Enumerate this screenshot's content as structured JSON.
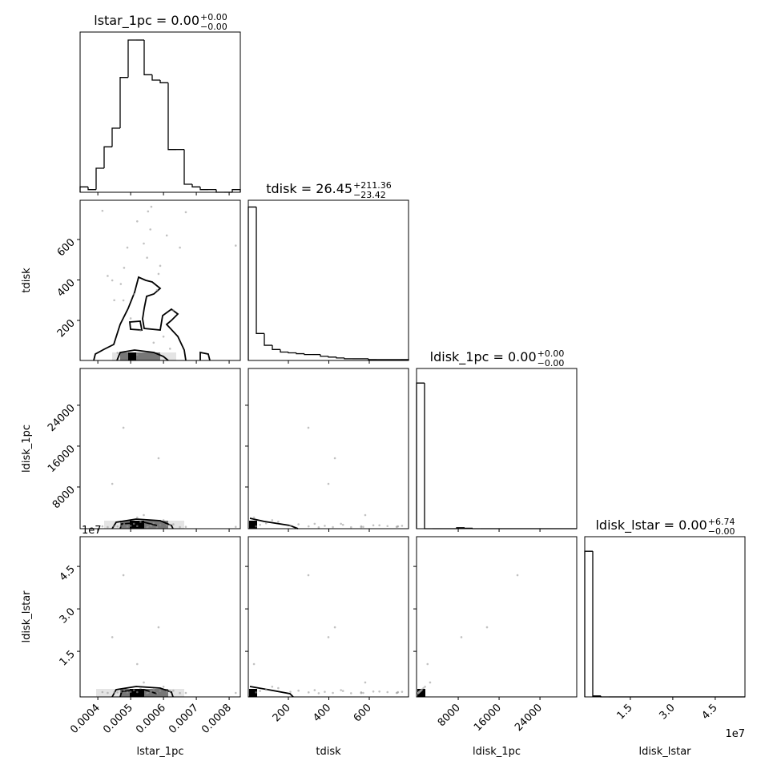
{
  "chart_data": {
    "type": "corner",
    "params": [
      {
        "name": "lstar_1pc",
        "title": "lstar_1pc = 0.00",
        "plus": "+0.00",
        "minus": "−0.00",
        "lim": [
          0.000346,
          0.000834
        ],
        "ticks": [
          0.0004,
          0.0005,
          0.0006,
          0.0007,
          0.0008
        ],
        "hist": {
          "bins": [
            0.000346,
            0.0003704,
            0.0003948,
            0.0004192,
            0.0004436,
            0.000468,
            0.0004924,
            0.0005168,
            0.0005412,
            0.0005656,
            0.00059,
            0.0006144,
            0.0006388,
            0.0006632,
            0.0006876,
            0.000712,
            0.0007364,
            0.0007608,
            0.0007852,
            0.0008096,
            0.000834
          ],
          "counts": [
            2,
            1,
            9,
            17,
            24,
            43,
            57,
            57,
            44,
            42,
            41,
            16,
            16,
            3,
            2,
            1,
            1,
            0,
            0,
            1
          ],
          "ylim": [
            0,
            60
          ]
        }
      },
      {
        "name": "tdisk",
        "title": "tdisk = 26.45",
        "plus": "+211.36",
        "minus": "−23.42",
        "lim": [
          2,
          794
        ],
        "ticks": [
          200,
          400,
          600
        ],
        "hist": {
          "bins": [
            2,
            41.6,
            81.2,
            120.8,
            160.4,
            200,
            239.6,
            279.2,
            318.8,
            358.4,
            398,
            437.6,
            477.2,
            516.8,
            556.4,
            596,
            635.6,
            675.2,
            714.8,
            754.4,
            794
          ],
          "counts": [
            182,
            32,
            18,
            13,
            10,
            9,
            8,
            7,
            7,
            5,
            4,
            3,
            2,
            2,
            2,
            1,
            1,
            1,
            1,
            1
          ],
          "ylim": [
            0,
            190
          ]
        }
      },
      {
        "name": "ldisk_1pc",
        "title": "ldisk_1pc = 0.00",
        "plus": "+0.00",
        "minus": "−0.00",
        "lim": [
          -160,
          31200
        ],
        "ticks": [
          8000,
          16000,
          24000
        ],
        "hist": {
          "bins": [
            -160,
            1408,
            2976,
            4544,
            6112,
            7680,
            9248,
            10816,
            12384,
            13952,
            15520,
            17088,
            18656,
            20224,
            21792,
            23360,
            24928,
            26496,
            28064,
            29632,
            31200
          ],
          "counts": [
            300,
            0,
            0,
            0,
            0,
            2,
            1,
            0,
            0,
            0,
            0,
            0,
            0,
            0,
            0,
            0,
            0,
            0,
            0,
            0
          ],
          "ylim": [
            0,
            330
          ]
        }
      },
      {
        "name": "ldisk_lstar",
        "title": "ldisk_lstar = 0.00",
        "plus": "+6.74",
        "minus": "−0.00",
        "lim": [
          -1100000,
          55500000
        ],
        "offset_label": "1e7",
        "ticks": [
          {
            "value": 15000000,
            "label": "1.5"
          },
          {
            "value": 30000000,
            "label": "3.0"
          },
          {
            "value": 45000000,
            "label": "4.5"
          }
        ],
        "hist": {
          "bins": [
            -1100000,
            1730000,
            4560000,
            7390000,
            10220000,
            13050000,
            15880000,
            18710000,
            21540000,
            24370000,
            27200000,
            30030000,
            32860000,
            35690000,
            38520000,
            41350000,
            44180000,
            47010000,
            49840000,
            52670000,
            55500000
          ],
          "counts": [
            300,
            2,
            0,
            0,
            0,
            0,
            0,
            0,
            0,
            0,
            0,
            0,
            0,
            0,
            0,
            0,
            0,
            0,
            0,
            0
          ],
          "ylim": [
            0,
            330
          ]
        }
      }
    ],
    "samples": [
      [
        0.000478,
        0.000444,
        0.000585,
        0.000414,
        0.000563,
        0.000553,
        0.000668,
        0.00049,
        0.00052,
        0.00061,
        0.00043,
        0.00055,
        0.00059,
        0.00047,
        0.00065,
        0.00051,
        0.00054,
        0.00082,
        0.00045,
        0.00058,
        0.00063,
        0.0005,
        0.00056,
        0.00048,
        0.00053,
        0.0006,
        0.00057,
        0.00062,
        0.00046,
        0.00052
      ],
      [
        299,
        398,
        430,
        742,
        762,
        739,
        735,
        560,
        690,
        620,
        420,
        510,
        470,
        380,
        560,
        330,
        580,
        570,
        300,
        350,
        250,
        210,
        650,
        460,
        150,
        120,
        90,
        60,
        40,
        30
      ],
      [
        19600,
        8620,
        13640,
        300,
        400,
        250,
        200,
        300,
        350,
        500,
        150,
        120,
        600,
        400,
        150,
        800,
        2500,
        200,
        300,
        100,
        700,
        400,
        500,
        800,
        1200,
        1500,
        900,
        600,
        300,
        2000
      ],
      [
        41900000,
        20000000,
        23500000,
        600000,
        700000,
        400000,
        300000,
        500000,
        600000,
        800000,
        300000,
        200000,
        1000000,
        700000,
        250000,
        1300000,
        4000000,
        300000,
        500000,
        200000,
        1100000,
        700000,
        800000,
        1300000,
        2000000,
        2500000,
        1500000,
        1000000,
        500000,
        10500000
      ]
    ]
  }
}
